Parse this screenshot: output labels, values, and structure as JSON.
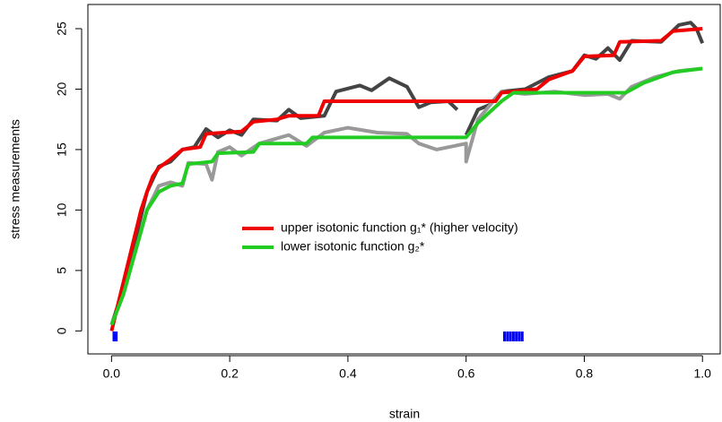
{
  "chart_data": {
    "type": "line",
    "xlabel": "strain",
    "ylabel": "stress measurements",
    "xlim": [
      -0.04,
      1.03
    ],
    "ylim": [
      -1.9,
      27
    ],
    "xticks": [
      {
        "value": 0,
        "label": "0.0"
      },
      0.2,
      0.4,
      0.6,
      0.8,
      {
        "value": 1,
        "label": "1.0"
      }
    ],
    "yticks": [
      0,
      5,
      10,
      15,
      20,
      25
    ],
    "series": [
      {
        "color": "#444444",
        "x": [
          0,
          0.02,
          0.04,
          0.06,
          0.08,
          0.1,
          0.12,
          0.14,
          0.16,
          0.18,
          0.2,
          0.22,
          0.24,
          0.28,
          0.3,
          0.32,
          0.36,
          0.38,
          0.42,
          0.44,
          0.47,
          0.5,
          0.52,
          0.54,
          0.57,
          0.585,
          0.59,
          0.6,
          0.62,
          0.64,
          0.66,
          0.7,
          0.74,
          0.78,
          0.8,
          0.82,
          0.84,
          0.86,
          0.88,
          0.93,
          0.96,
          0.98,
          0.99,
          1.0
        ],
        "values": [
          0.5,
          3.5,
          7.5,
          11.5,
          13.6,
          14,
          15,
          15.2,
          16.7,
          16,
          16.6,
          16.2,
          17.5,
          17.4,
          18.3,
          17.6,
          17.8,
          19.8,
          20.3,
          19.9,
          20.9,
          20.2,
          18.5,
          18.9,
          19,
          18.3,
          null,
          16.2,
          18.3,
          18.7,
          19.8,
          20,
          21,
          21.5,
          22.8,
          22.5,
          23.4,
          22.4,
          24,
          23.9,
          25.3,
          25.5,
          25,
          23.8
        ]
      },
      {
        "color": "#999999",
        "x": [
          0,
          0.02,
          0.04,
          0.06,
          0.08,
          0.1,
          0.12,
          0.13,
          0.16,
          0.17,
          0.18,
          0.2,
          0.22,
          0.25,
          0.3,
          0.33,
          0.36,
          0.4,
          0.45,
          0.5,
          0.52,
          0.55,
          0.58,
          0.6,
          0.6,
          0.62,
          0.66,
          0.7,
          0.75,
          0.8,
          0.84,
          0.86,
          0.88,
          0.92,
          0.96,
          1.0
        ],
        "values": [
          0.5,
          3,
          6.5,
          10,
          12,
          12.3,
          12,
          13.9,
          13.8,
          12.5,
          14.8,
          15.2,
          14.5,
          15.5,
          16.2,
          15.3,
          16.4,
          16.8,
          16.4,
          16.3,
          15.5,
          15,
          15.3,
          15.5,
          14,
          17.5,
          19.8,
          19.6,
          19.8,
          19.5,
          19.6,
          19.2,
          20.2,
          21,
          21.5,
          21.7
        ]
      },
      {
        "name": "upper isotonic function g₁* (higher velocity)",
        "color": "#ee0000",
        "x": [
          0,
          0.01,
          0.02,
          0.03,
          0.04,
          0.05,
          0.06,
          0.07,
          0.08,
          0.1,
          0.12,
          0.15,
          0.16,
          0.22,
          0.24,
          0.28,
          0.3,
          0.35,
          0.36,
          0.65,
          0.66,
          0.72,
          0.74,
          0.78,
          0.8,
          0.85,
          0.86,
          0.93,
          0.95,
          1.0
        ],
        "values": [
          0,
          2,
          4,
          6,
          8,
          10,
          11.5,
          12.8,
          13.5,
          14.2,
          15,
          15.2,
          16.3,
          16.5,
          17.3,
          17.5,
          17.8,
          17.8,
          19,
          19,
          19.7,
          20,
          20.8,
          21.5,
          22.7,
          22.8,
          23.9,
          24,
          24.8,
          25
        ]
      },
      {
        "name": "lower isotonic function g₂*",
        "color": "#22cc22",
        "x": [
          0,
          0.02,
          0.04,
          0.06,
          0.08,
          0.1,
          0.12,
          0.13,
          0.17,
          0.18,
          0.24,
          0.25,
          0.33,
          0.34,
          0.6,
          0.62,
          0.66,
          0.68,
          0.87,
          0.9,
          0.95,
          1.0
        ],
        "values": [
          0.5,
          3,
          6.5,
          10,
          11.5,
          12,
          12.2,
          13.8,
          14,
          14.7,
          14.8,
          15.5,
          15.5,
          16,
          16,
          17.2,
          19,
          19.7,
          19.7,
          20.5,
          21.4,
          21.7
        ]
      }
    ],
    "rug": {
      "color": "#0000ff",
      "x": [
        0.004,
        0.008,
        0.665,
        0.67,
        0.675,
        0.68,
        0.685,
        0.69,
        0.695
      ]
    }
  }
}
